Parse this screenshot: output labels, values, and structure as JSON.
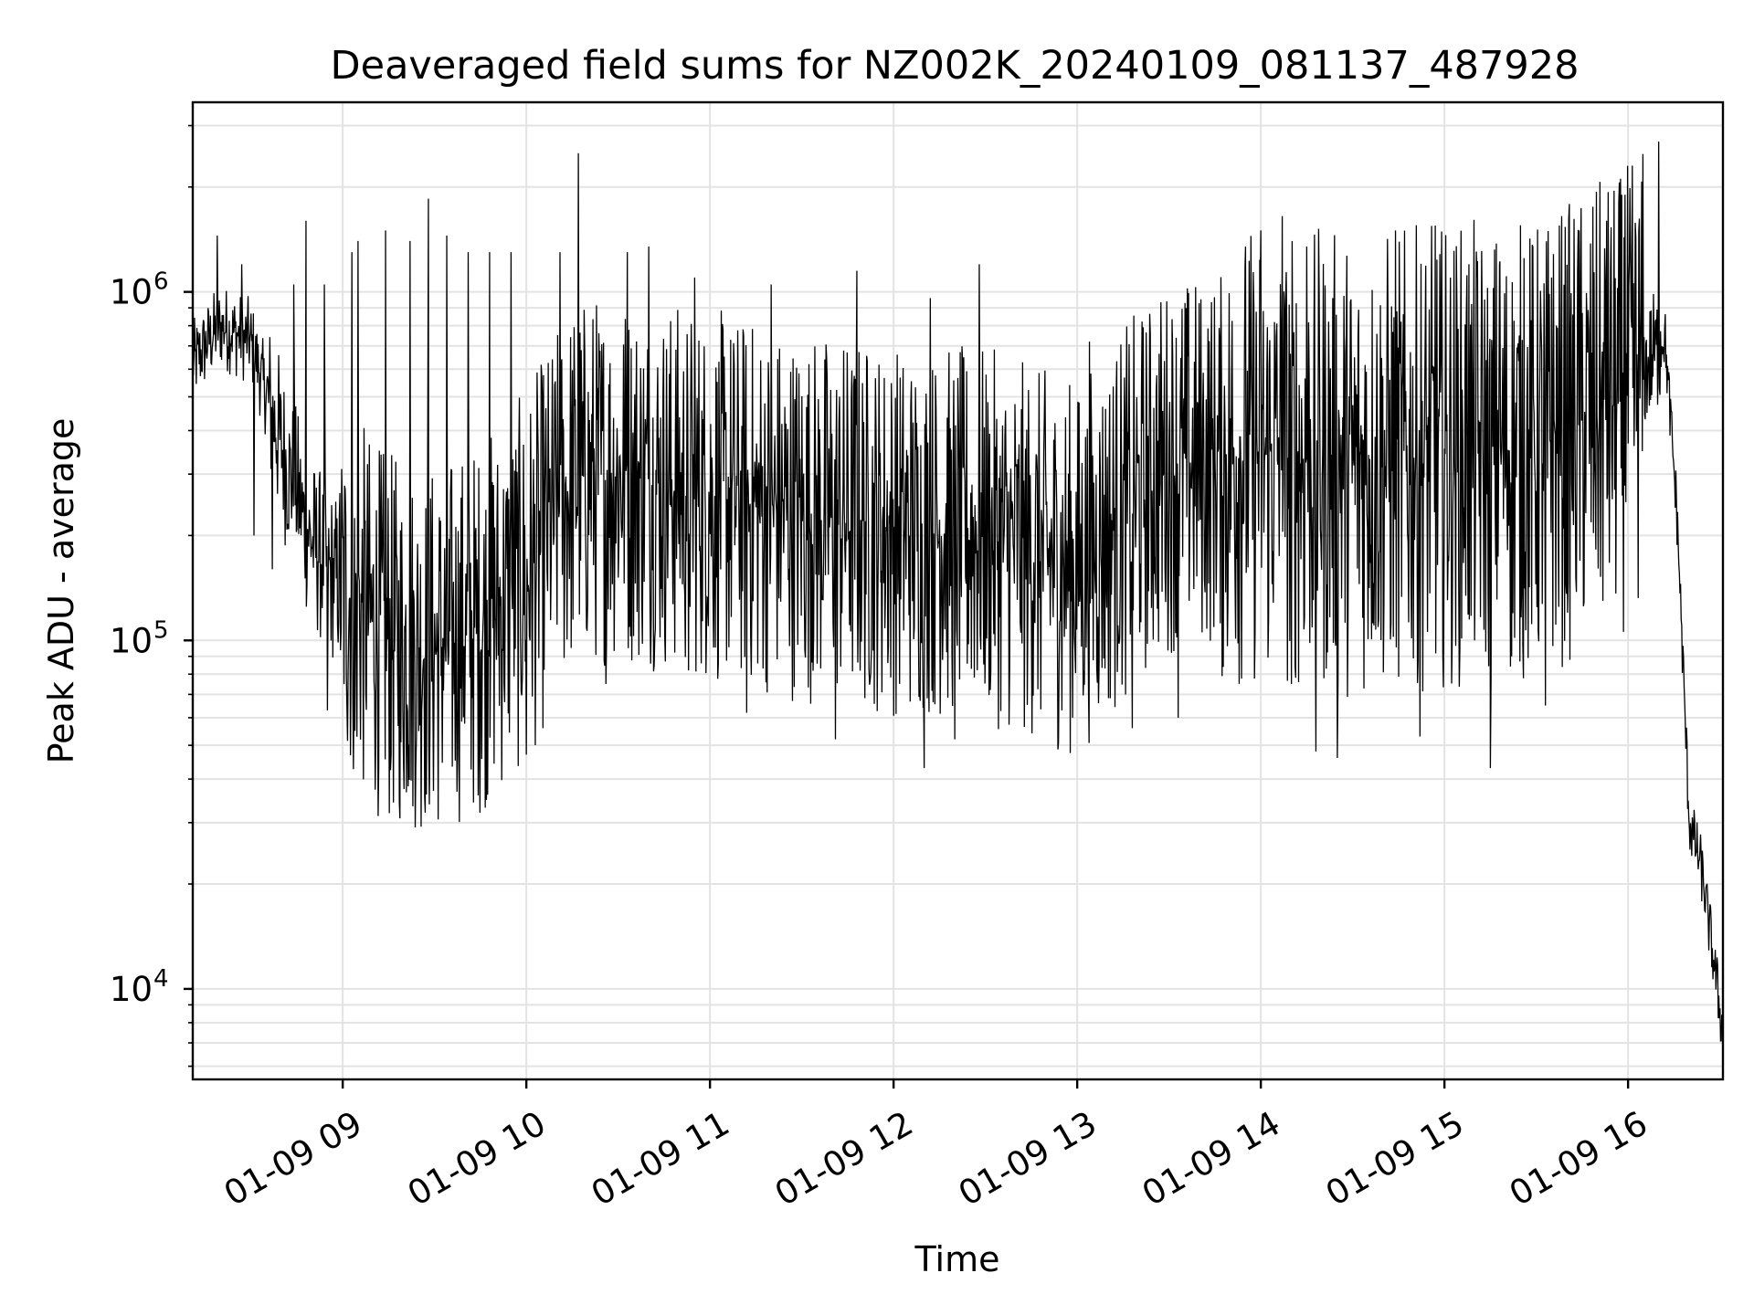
{
  "chart_data": {
    "type": "line",
    "title": "Deaveraged field sums for NZ002K_20240109_081137_487928",
    "xlabel": "Time",
    "ylabel": "Peak ADU - average",
    "y_scale": "log",
    "ylim": [
      5500,
      3500000
    ],
    "xlim": [
      "2024-01-09 08:11",
      "2024-01-09 16:31"
    ],
    "grid": true,
    "x_ticks": [
      {
        "time": "2024-01-09 09:00",
        "label": "01-09 09"
      },
      {
        "time": "2024-01-09 10:00",
        "label": "01-09 10"
      },
      {
        "time": "2024-01-09 11:00",
        "label": "01-09 11"
      },
      {
        "time": "2024-01-09 12:00",
        "label": "01-09 12"
      },
      {
        "time": "2024-01-09 13:00",
        "label": "01-09 13"
      },
      {
        "time": "2024-01-09 14:00",
        "label": "01-09 14"
      },
      {
        "time": "2024-01-09 15:00",
        "label": "01-09 15"
      },
      {
        "time": "2024-01-09 16:00",
        "label": "01-09 16"
      }
    ],
    "y_ticks": [
      {
        "value": 10000,
        "base": "10",
        "exp": "4"
      },
      {
        "value": 100000,
        "base": "10",
        "exp": "5"
      },
      {
        "value": 1000000,
        "base": "10",
        "exp": "6"
      }
    ],
    "series": [
      {
        "color": "#000000",
        "envelope": {
          "x": [
            "2024-01-09 08:11",
            "2024-01-09 08:20",
            "2024-01-09 08:30",
            "2024-01-09 08:40",
            "2024-01-09 08:50",
            "2024-01-09 09:00",
            "2024-01-09 09:15",
            "2024-01-09 09:30",
            "2024-01-09 09:45",
            "2024-01-09 10:00",
            "2024-01-09 10:15",
            "2024-01-09 10:30",
            "2024-01-09 10:45",
            "2024-01-09 11:00",
            "2024-01-09 11:30",
            "2024-01-09 12:00",
            "2024-01-09 12:30",
            "2024-01-09 13:00",
            "2024-01-09 13:15",
            "2024-01-09 13:30",
            "2024-01-09 14:00",
            "2024-01-09 14:30",
            "2024-01-09 15:00",
            "2024-01-09 15:30",
            "2024-01-09 16:00",
            "2024-01-09 16:08",
            "2024-01-09 16:12",
            "2024-01-09 16:16",
            "2024-01-09 16:20",
            "2024-01-09 16:24",
            "2024-01-09 16:28",
            "2024-01-09 16:31"
          ],
          "y": [
            620000,
            800000,
            720000,
            360000,
            190000,
            140000,
            100000,
            95000,
            110000,
            150000,
            280000,
            300000,
            280000,
            260000,
            230000,
            210000,
            200000,
            160000,
            230000,
            320000,
            340000,
            320000,
            340000,
            350000,
            500000,
            650000,
            750000,
            230000,
            30000,
            22000,
            12000,
            7500
          ]
        },
        "spikes": [
          {
            "x": "2024-01-09 08:19",
            "y": 1450000
          },
          {
            "x": "2024-01-09 08:27",
            "y": 1200000
          },
          {
            "x": "2024-01-09 08:44",
            "y": 1050000
          },
          {
            "x": "2024-01-09 08:48",
            "y": 1600000
          },
          {
            "x": "2024-01-09 08:54",
            "y": 1050000
          },
          {
            "x": "2024-01-09 09:03",
            "y": 1300000
          },
          {
            "x": "2024-01-09 09:05",
            "y": 1400000
          },
          {
            "x": "2024-01-09 09:14",
            "y": 1500000
          },
          {
            "x": "2024-01-09 09:19",
            "y": 1450000
          },
          {
            "x": "2024-01-09 09:22",
            "y": 1400000
          },
          {
            "x": "2024-01-09 09:28",
            "y": 1850000
          },
          {
            "x": "2024-01-09 09:34",
            "y": 1450000
          },
          {
            "x": "2024-01-09 09:41",
            "y": 1300000
          },
          {
            "x": "2024-01-09 09:48",
            "y": 1300000
          },
          {
            "x": "2024-01-09 09:55",
            "y": 1300000
          },
          {
            "x": "2024-01-09 10:11",
            "y": 1300000
          },
          {
            "x": "2024-01-09 10:17",
            "y": 2500000
          },
          {
            "x": "2024-01-09 10:33",
            "y": 1300000
          },
          {
            "x": "2024-01-09 10:40",
            "y": 1350000
          },
          {
            "x": "2024-01-09 10:55",
            "y": 1100000
          },
          {
            "x": "2024-01-09 11:20",
            "y": 1050000
          },
          {
            "x": "2024-01-09 11:48",
            "y": 1150000
          },
          {
            "x": "2024-01-09 12:12",
            "y": 960000
          },
          {
            "x": "2024-01-09 12:28",
            "y": 1200000
          },
          {
            "x": "2024-01-09 13:04",
            "y": 720000
          },
          {
            "x": "2024-01-09 13:55",
            "y": 1350000
          },
          {
            "x": "2024-01-09 14:00",
            "y": 1500000
          },
          {
            "x": "2024-01-09 14:07",
            "y": 1650000
          },
          {
            "x": "2024-01-09 14:15",
            "y": 1350000
          },
          {
            "x": "2024-01-09 14:25",
            "y": 1600000
          },
          {
            "x": "2024-01-09 14:44",
            "y": 1500000
          },
          {
            "x": "2024-01-09 14:57",
            "y": 1550000
          },
          {
            "x": "2024-01-09 15:08",
            "y": 1200000
          },
          {
            "x": "2024-01-09 15:18",
            "y": 1200000
          },
          {
            "x": "2024-01-09 15:26",
            "y": 1250000
          },
          {
            "x": "2024-01-09 15:35",
            "y": 1100000
          },
          {
            "x": "2024-01-09 15:44",
            "y": 1500000
          },
          {
            "x": "2024-01-09 15:53",
            "y": 1600000
          },
          {
            "x": "2024-01-09 15:59",
            "y": 1900000
          },
          {
            "x": "2024-01-09 16:10",
            "y": 2700000
          }
        ],
        "dips": [
          {
            "x": "2024-01-09 08:31",
            "y": 200000
          },
          {
            "x": "2024-01-09 08:37",
            "y": 160000
          },
          {
            "x": "2024-01-09 08:55",
            "y": 63000
          },
          {
            "x": "2024-01-09 09:04",
            "y": 55000
          },
          {
            "x": "2024-01-09 09:19",
            "y": 51000
          },
          {
            "x": "2024-01-09 09:38",
            "y": 49000
          },
          {
            "x": "2024-01-09 10:00",
            "y": 47000
          },
          {
            "x": "2024-01-09 10:26",
            "y": 75000
          },
          {
            "x": "2024-01-09 10:53",
            "y": 82000
          },
          {
            "x": "2024-01-09 11:12",
            "y": 62000
          },
          {
            "x": "2024-01-09 11:41",
            "y": 52000
          },
          {
            "x": "2024-01-09 12:10",
            "y": 43000
          },
          {
            "x": "2024-01-09 12:20",
            "y": 52000
          },
          {
            "x": "2024-01-09 12:55",
            "y": 63000
          },
          {
            "x": "2024-01-09 13:18",
            "y": 56000
          },
          {
            "x": "2024-01-09 13:33",
            "y": 60000
          },
          {
            "x": "2024-01-09 14:10",
            "y": 75000
          },
          {
            "x": "2024-01-09 14:18",
            "y": 48000
          },
          {
            "x": "2024-01-09 14:25",
            "y": 46000
          },
          {
            "x": "2024-01-09 14:52",
            "y": 53000
          },
          {
            "x": "2024-01-09 15:15",
            "y": 43000
          },
          {
            "x": "2024-01-09 15:33",
            "y": 65000
          }
        ]
      }
    ]
  }
}
